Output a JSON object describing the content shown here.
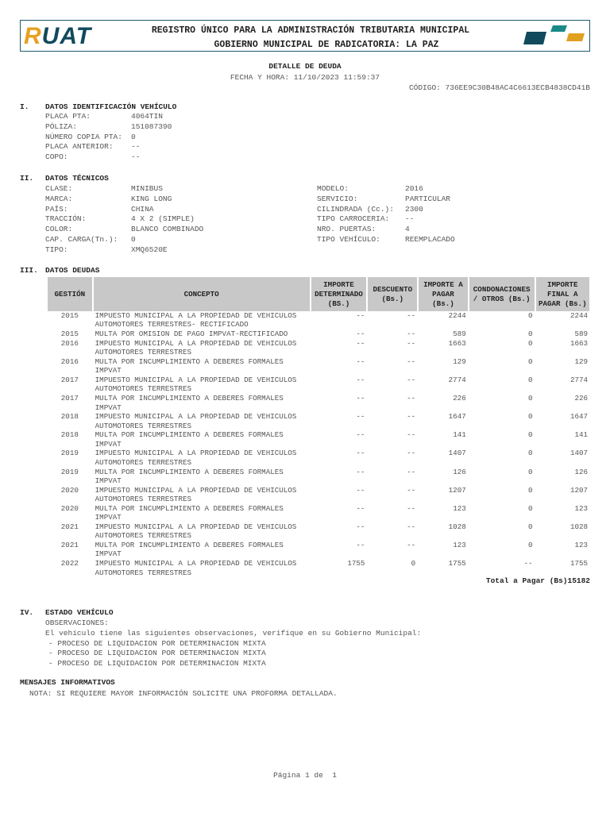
{
  "header": {
    "logo": "RUAT",
    "title1": "REGISTRO ÚNICO PARA LA ADMINISTRACIÓN TRIBUTARIA MUNICIPAL",
    "title2": "GOBIERNO MUNICIPAL DE RADICATORIA: LA PAZ",
    "brand_colors": [
      "#114a5c",
      "#e8a020",
      "#1a8a88"
    ]
  },
  "doc": {
    "title": "DETALLE DE DEUDA",
    "fecha": "FECHA Y HORA: 11/10/2023 11:59:37",
    "codigo": "CÓDIGO: 736EE9C30B48AC4C6613ECB4838CD41B"
  },
  "s1": {
    "num": "I.",
    "title": "DATOS IDENTIFICACIÓN VEHÍCULO",
    "rows": [
      {
        "k": "PLACA PTA:",
        "v": "4064TIN"
      },
      {
        "k": "PÓLIZA:",
        "v": "151087390"
      },
      {
        "k": "NÚMERO COPIA PTA:",
        "v": "0"
      },
      {
        "k": "PLACA ANTERIOR:",
        "v": "--"
      },
      {
        "k": "COPO:",
        "v": "--"
      }
    ]
  },
  "s2": {
    "num": "II.",
    "title": "DATOS TÉCNICOS",
    "left": [
      {
        "k": "CLASE:",
        "v": "MINIBUS"
      },
      {
        "k": "MARCA:",
        "v": "KING LONG"
      },
      {
        "k": "PAÍS:",
        "v": "CHINA"
      },
      {
        "k": "TRACCIÓN:",
        "v": "4 X 2 (SIMPLE)"
      },
      {
        "k": "COLOR:",
        "v": "BLANCO COMBINADO"
      },
      {
        "k": "CAP. CARGA(Tn.):",
        "v": "0"
      },
      {
        "k": "TIPO:",
        "v": "XMQ6520E"
      }
    ],
    "right": [
      {
        "k": "MODELO:",
        "v": "2016"
      },
      {
        "k": "SERVICIO:",
        "v": "PARTICULAR"
      },
      {
        "k": "CILINDRADA (Cc.):",
        "v": "2300"
      },
      {
        "k": "TIPO CARROCERIA:",
        "v": "--"
      },
      {
        "k": "NRO. PUERTAS:",
        "v": "4"
      },
      {
        "k": "TIPO VEHÍCULO:",
        "v": "REEMPLACADO"
      }
    ]
  },
  "s3": {
    "num": "III.",
    "title": "DATOS DEUDAS",
    "headers": [
      "GESTIÓN",
      "CONCEPTO",
      "IMPORTE DETERMINADO (BS.)",
      "DESCUENTO (Bs.)",
      "IMPORTE A PAGAR (Bs.)",
      "CONDONACIONES / OTROS (Bs.)",
      "IMPORTE FINAL A PAGAR (Bs.)"
    ],
    "rows": [
      [
        "2015",
        "IMPUESTO MUNICIPAL A LA PROPIEDAD DE VEHICULOS AUTOMOTORES TERRESTRES- RECTIFICADO",
        "--",
        "--",
        "2244",
        "0",
        "2244"
      ],
      [
        "2015",
        "MULTA POR OMISION DE PAGO IMPVAT-RECTIFICADO",
        "--",
        "--",
        "589",
        "0",
        "589"
      ],
      [
        "2016",
        "IMPUESTO MUNICIPAL A LA PROPIEDAD DE VEHICULOS AUTOMOTORES TERRESTRES",
        "--",
        "--",
        "1663",
        "0",
        "1663"
      ],
      [
        "2016",
        "MULTA POR INCUMPLIMIENTO A DEBERES FORMALES IMPVAT",
        "--",
        "--",
        "129",
        "0",
        "129"
      ],
      [
        "2017",
        "IMPUESTO MUNICIPAL A LA PROPIEDAD DE VEHICULOS AUTOMOTORES TERRESTRES",
        "--",
        "--",
        "2774",
        "0",
        "2774"
      ],
      [
        "2017",
        "MULTA POR INCUMPLIMIENTO A DEBERES FORMALES IMPVAT",
        "--",
        "--",
        "226",
        "0",
        "226"
      ],
      [
        "2018",
        "IMPUESTO MUNICIPAL A LA PROPIEDAD DE VEHICULOS AUTOMOTORES TERRESTRES",
        "--",
        "--",
        "1647",
        "0",
        "1647"
      ],
      [
        "2018",
        "MULTA POR INCUMPLIMIENTO A DEBERES FORMALES IMPVAT",
        "--",
        "--",
        "141",
        "0",
        "141"
      ],
      [
        "2019",
        "IMPUESTO MUNICIPAL A LA PROPIEDAD DE VEHICULOS AUTOMOTORES TERRESTRES",
        "--",
        "--",
        "1407",
        "0",
        "1407"
      ],
      [
        "2019",
        "MULTA POR INCUMPLIMIENTO A DEBERES FORMALES IMPVAT",
        "--",
        "--",
        "126",
        "0",
        "126"
      ],
      [
        "2020",
        "IMPUESTO MUNICIPAL A LA PROPIEDAD DE VEHICULOS AUTOMOTORES TERRESTRES",
        "--",
        "--",
        "1207",
        "0",
        "1207"
      ],
      [
        "2020",
        "MULTA POR INCUMPLIMIENTO A DEBERES FORMALES IMPVAT",
        "--",
        "--",
        "123",
        "0",
        "123"
      ],
      [
        "2021",
        "IMPUESTO MUNICIPAL A LA PROPIEDAD DE VEHICULOS AUTOMOTORES TERRESTRES",
        "--",
        "--",
        "1028",
        "0",
        "1028"
      ],
      [
        "2021",
        "MULTA POR INCUMPLIMIENTO A DEBERES FORMALES IMPVAT",
        "--",
        "--",
        "123",
        "0",
        "123"
      ],
      [
        "2022",
        "IMPUESTO MUNICIPAL A LA PROPIEDAD DE VEHICULOS AUTOMOTORES TERRESTRES",
        "1755",
        "0",
        "1755",
        "--",
        "1755"
      ]
    ],
    "total": "Total a Pagar (Bs)15182"
  },
  "s4": {
    "num": "IV.",
    "title": "ESTADO VEHÍCULO",
    "obs_label": "OBSERVACIONES:",
    "obs_text": "El vehículo tiene las siguientes observaciones, verifique en su Gobierno Municipal:",
    "items": [
      "- PROCESO DE LIQUIDACION POR DETERMINACION MIXTA",
      "- PROCESO DE LIQUIDACION POR DETERMINACION MIXTA",
      "- PROCESO DE LIQUIDACION POR DETERMINACION MIXTA"
    ]
  },
  "msg": {
    "title": "MENSAJES INFORMATIVOS",
    "nota": "NOTA: SI REQUIERE MAYOR INFORMACIÓN SOLICITE UNA PROFORMA DETALLADA."
  },
  "footer": {
    "page": "Página 1 de  1"
  }
}
